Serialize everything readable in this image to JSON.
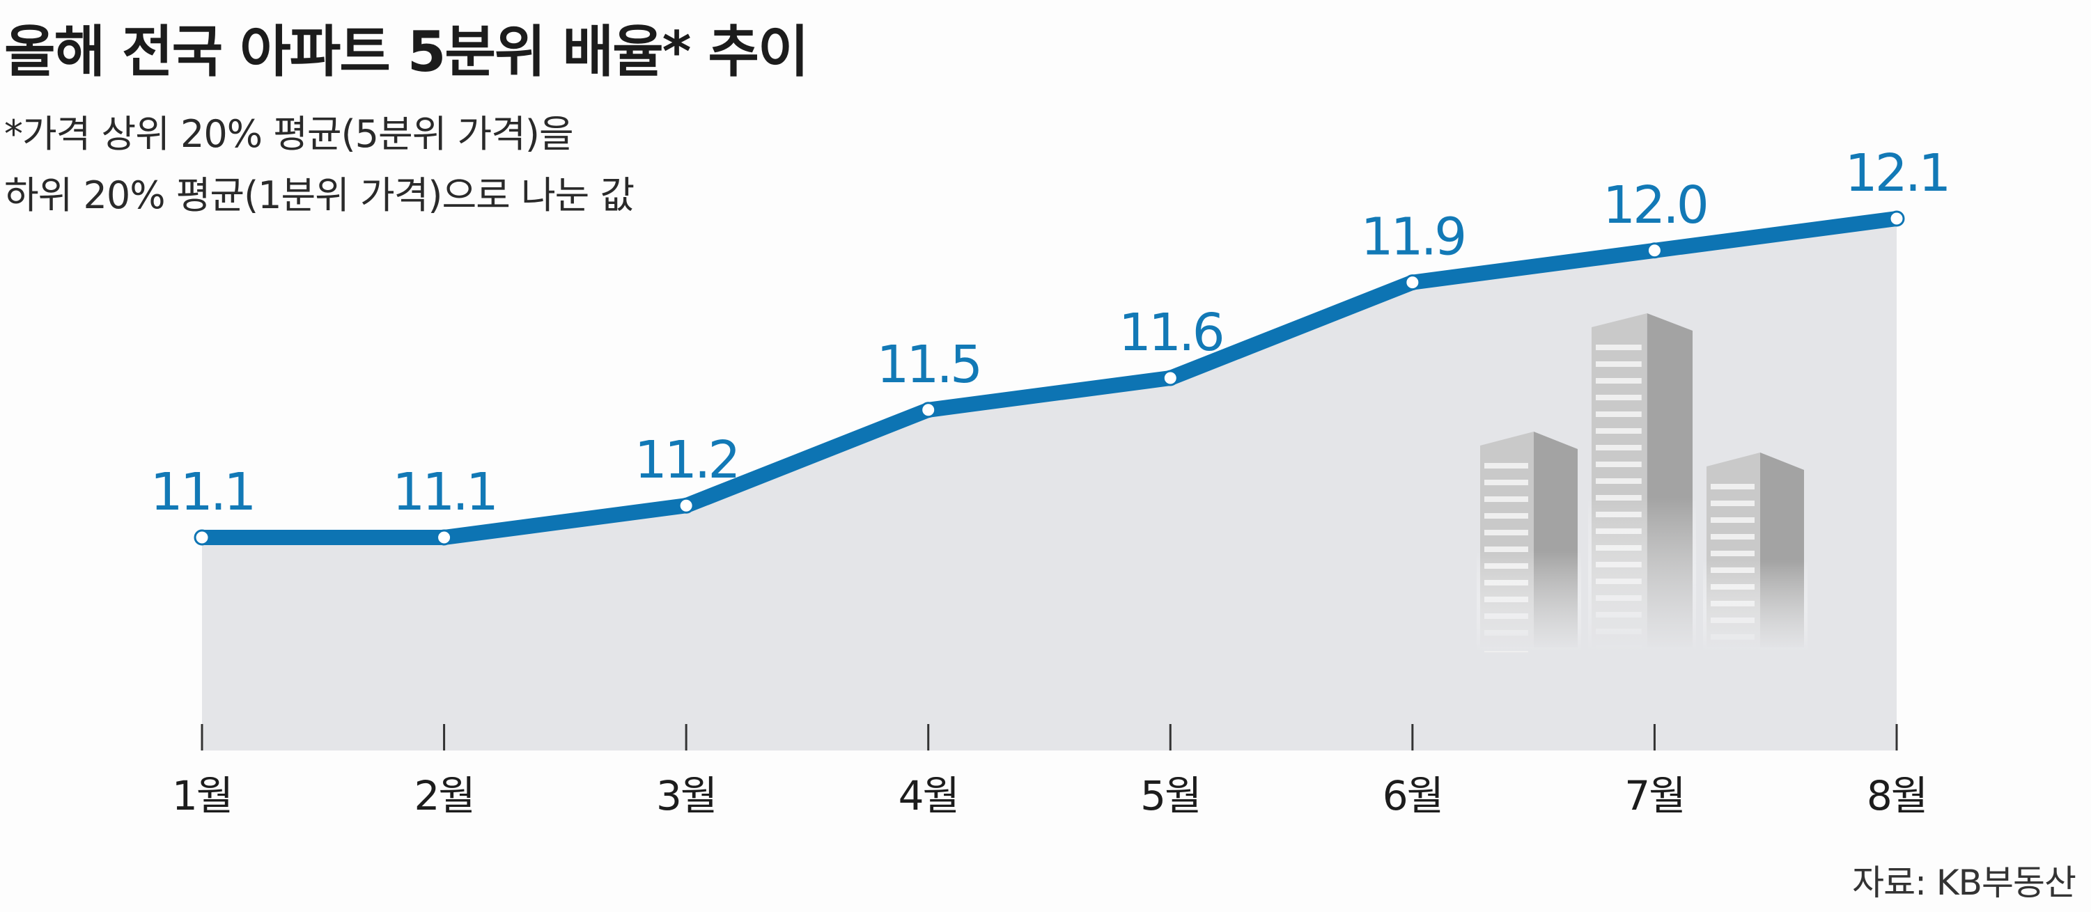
{
  "chart_data": {
    "type": "area",
    "title": "올해 전국 아파트 5분위 배율* 추이",
    "subtitle_lines": [
      "*가격 상위 20% 평균(5분위 가격)을",
      "하위 20% 평균(1분위 가격)으로 나눈 값"
    ],
    "categories": [
      "1월",
      "2월",
      "3월",
      "4월",
      "5월",
      "6월",
      "7월",
      "8월"
    ],
    "values": [
      11.1,
      11.1,
      11.2,
      11.5,
      11.6,
      11.9,
      12.0,
      12.1
    ],
    "data_labels": [
      "11.1",
      "11.1",
      "11.2",
      "11.5",
      "11.6",
      "11.9",
      "12.0",
      "12.1"
    ],
    "xlabel": "",
    "ylabel": "",
    "ylim": [
      9.0,
      12.2
    ],
    "grid": false,
    "legend": "none",
    "source": "자료: KB부동산",
    "colors": {
      "line": "#0d74b3",
      "label": "#1279b6",
      "area": "#e4e5e8",
      "axis": "#333333",
      "building_light": "#c9c9c9",
      "building_dark": "#a3a3a3"
    }
  }
}
